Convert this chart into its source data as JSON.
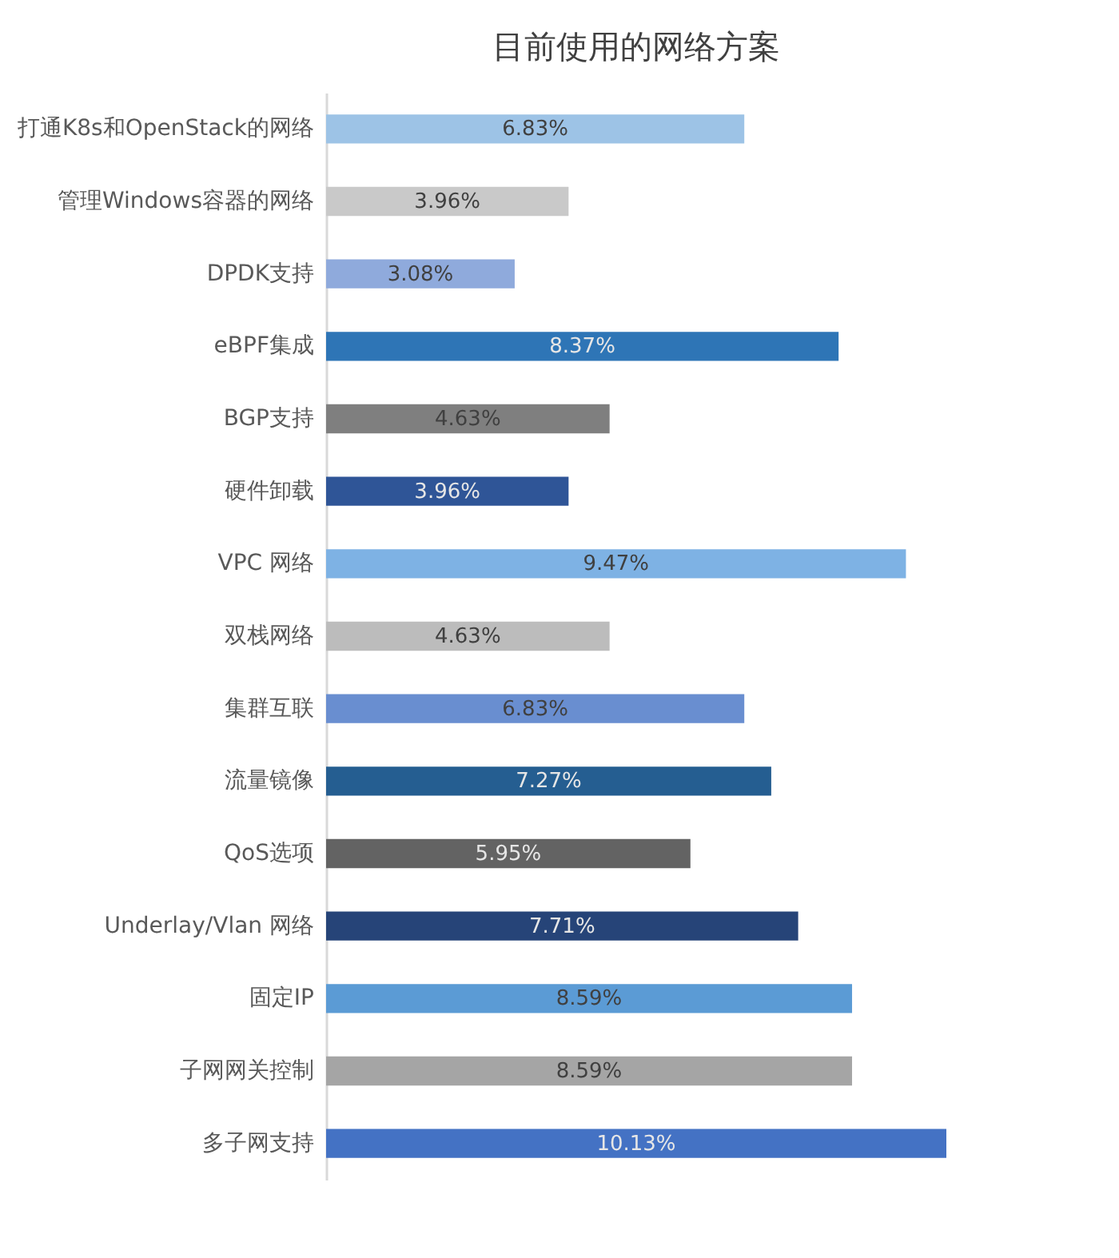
{
  "chart_data": {
    "type": "bar",
    "orientation": "horizontal",
    "title": "目前使用的网络方案",
    "categories": [
      "打通K8s和OpenStack的网络",
      "管理Windows容器的网络",
      "DPDK支持",
      "eBPF集成",
      "BGP支持",
      "硬件卸载",
      "VPC 网络",
      "双栈网络",
      "集群互联",
      "流量镜像",
      "QoS选项",
      "Underlay/Vlan 网络",
      "固定IP",
      "子网网关控制",
      "多子网支持"
    ],
    "values": [
      6.83,
      3.96,
      3.08,
      8.37,
      4.63,
      3.96,
      9.47,
      4.63,
      6.83,
      7.27,
      5.95,
      7.71,
      8.59,
      8.59,
      10.13
    ],
    "value_labels": [
      "6.83%",
      "3.96%",
      "3.08%",
      "8.37%",
      "4.63%",
      "3.96%",
      "9.47%",
      "4.63%",
      "6.83%",
      "7.27%",
      "5.95%",
      "7.71%",
      "8.59%",
      "8.59%",
      "10.13%"
    ],
    "colors": [
      "#9dc3e6",
      "#c9c9c9",
      "#8faadc",
      "#2e75b6",
      "#7f7f7f",
      "#2f5597",
      "#7eb2e4",
      "#bcbcbc",
      "#698ed0",
      "#255e91",
      "#636363",
      "#264478",
      "#5b9bd5",
      "#a5a5a5",
      "#4472c4"
    ]
  }
}
